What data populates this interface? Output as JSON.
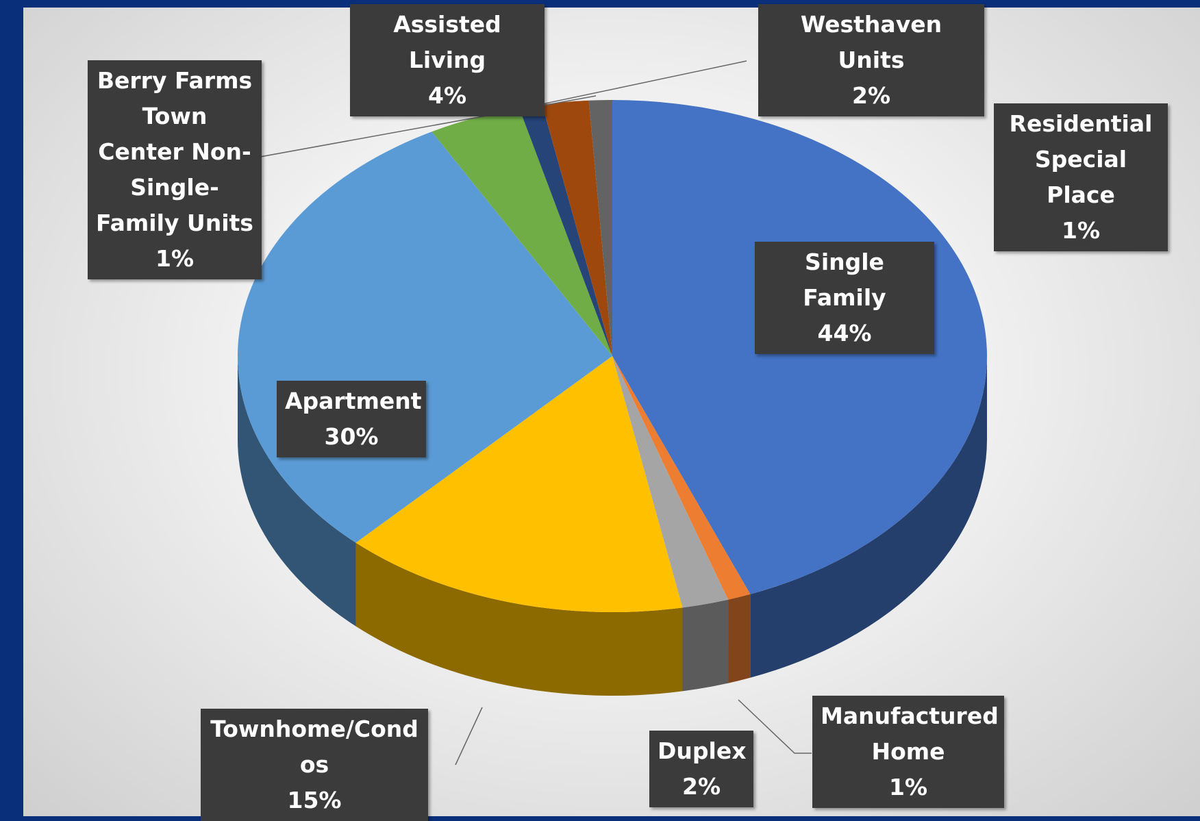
{
  "chart_data": {
    "type": "pie3d",
    "categories": [
      "Single Family",
      "Manufactured Home",
      "Duplex",
      "Townhome/Condos",
      "Apartment",
      "Assisted Living",
      "Berry Farms Town Center Non-Single-Family Units",
      "Westhaven Units",
      "Residential Special Place"
    ],
    "values": [
      44,
      1,
      2,
      15,
      30,
      4,
      1,
      2,
      1
    ],
    "value_labels": [
      "44%",
      "1%",
      "2%",
      "15%",
      "30%",
      "4%",
      "1%",
      "2%",
      "1%"
    ],
    "colors": [
      "#4472c4",
      "#ed7d31",
      "#a5a5a5",
      "#ffc000",
      "#5b9bd5",
      "#70ad47",
      "#264478",
      "#9e480e",
      "#636363"
    ]
  }
}
